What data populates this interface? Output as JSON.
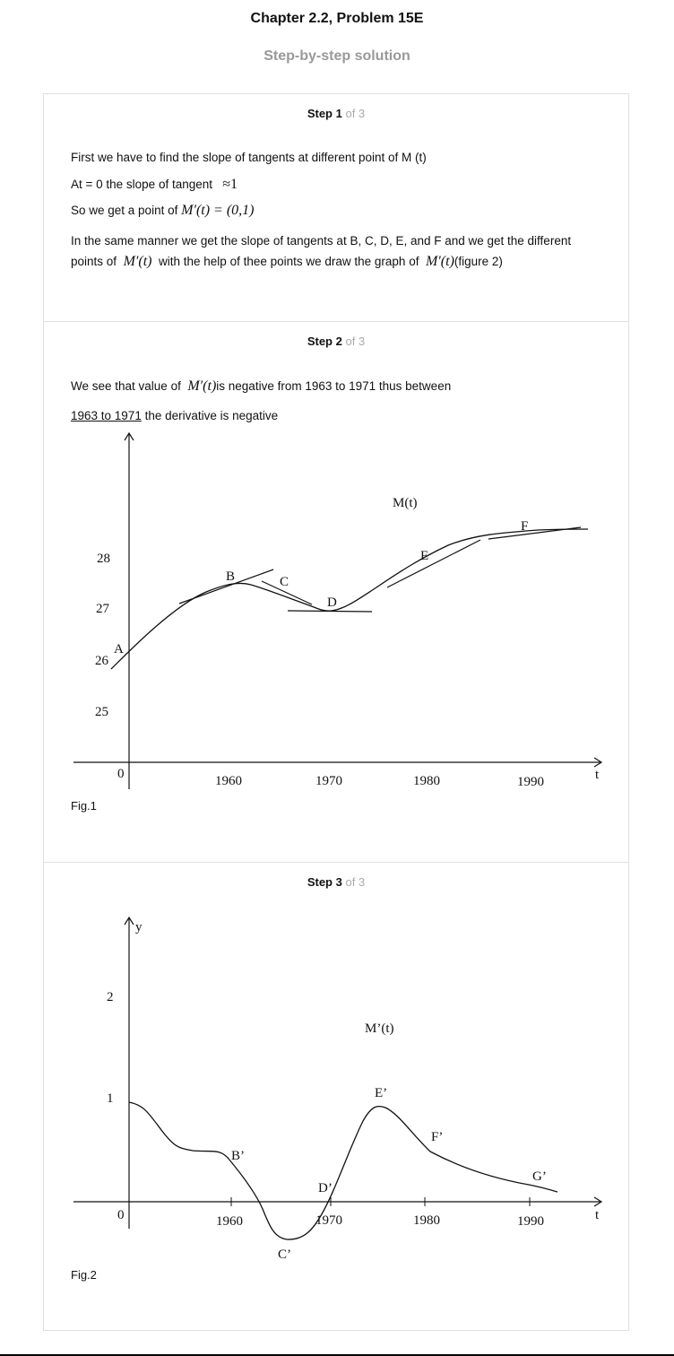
{
  "header": {
    "title": "Chapter 2.2, Problem 15E",
    "subtitle": "Step-by-step solution"
  },
  "steps": [
    {
      "label": "Step 1",
      "of": "of 3",
      "lines": {
        "l1": "First we have to find the slope of tangents at different point of M (t)",
        "l2a": "At = 0 the slope of tangent",
        "l2m": "≈1",
        "l3a": "So we get a point of",
        "l3m": "M′(t) = (0,1)",
        "l4": "In the same manner we get the slope of tangents at B, C, D, E, and F and we get the different",
        "l5a": "points of",
        "l5m1": "M′(t)",
        "l5b": "with the help of thee points we draw the graph of",
        "l5m2": "M′(t)",
        "l5c": "(figure 2)"
      }
    },
    {
      "label": "Step 2",
      "of": "of 3",
      "lines": {
        "l1a": "We see that value of",
        "l1m": "M′(t)",
        "l1b": "is negative from 1963 to 1971 thus between",
        "l2a": "1963 to 1971",
        "l2b": "the derivative is negative"
      },
      "figure_caption": "Fig.1"
    },
    {
      "label": "Step 3",
      "of": "of 3",
      "figure_caption": "Fig.2"
    }
  ],
  "figure1": {
    "curve_label": "M(t)",
    "origin": "0",
    "x_axis_label": "t",
    "x_ticks": [
      "1960",
      "1970",
      "1980",
      "1990"
    ],
    "y_ticks": [
      "25",
      "26",
      "27",
      "28"
    ],
    "points": [
      "A",
      "B",
      "C",
      "D",
      "E",
      "F"
    ]
  },
  "figure2": {
    "curve_label": "M’(t)",
    "origin": "0",
    "x_axis_label": "t",
    "y_axis_label": "y",
    "x_ticks": [
      "1960",
      "1970",
      "1980",
      "1990"
    ],
    "y_ticks": [
      "1",
      "2"
    ],
    "points": [
      "B’",
      "C’",
      "D’",
      "E’",
      "F’",
      "G’"
    ]
  }
}
